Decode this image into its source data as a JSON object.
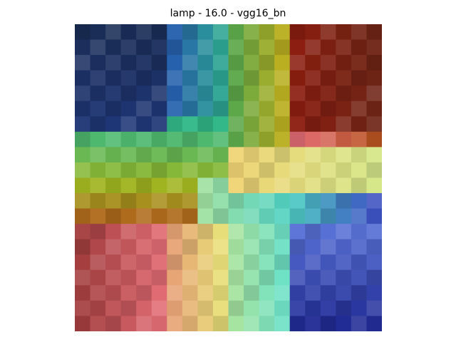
{
  "figure": {
    "title": "lamp - 16.0 - vgg16_bn",
    "image_description": "pixelated heatmap-style rainbow visualization",
    "grid": {
      "cols": 20,
      "rows": 20
    },
    "palette": [
      "#1a2c55",
      "#203b86",
      "#2456b0",
      "#27a7a9",
      "#2fb88c",
      "#5aa84a",
      "#9eb820",
      "#c8b01a",
      "#b4511a",
      "#8e1d10",
      "#6b2515",
      "#b87772",
      "#e66f78",
      "#f0d272",
      "#d5e88a",
      "#9ed39e",
      "#4dd0c4",
      "#5a73d8",
      "#3c47c2",
      "#1d2690",
      "#c85a6a",
      "#e8f07a",
      "#a8e4a0",
      "#5fe0d0",
      "#7c8ff0",
      "#d28d50",
      "#e79a74",
      "#9e3a3a"
    ]
  }
}
